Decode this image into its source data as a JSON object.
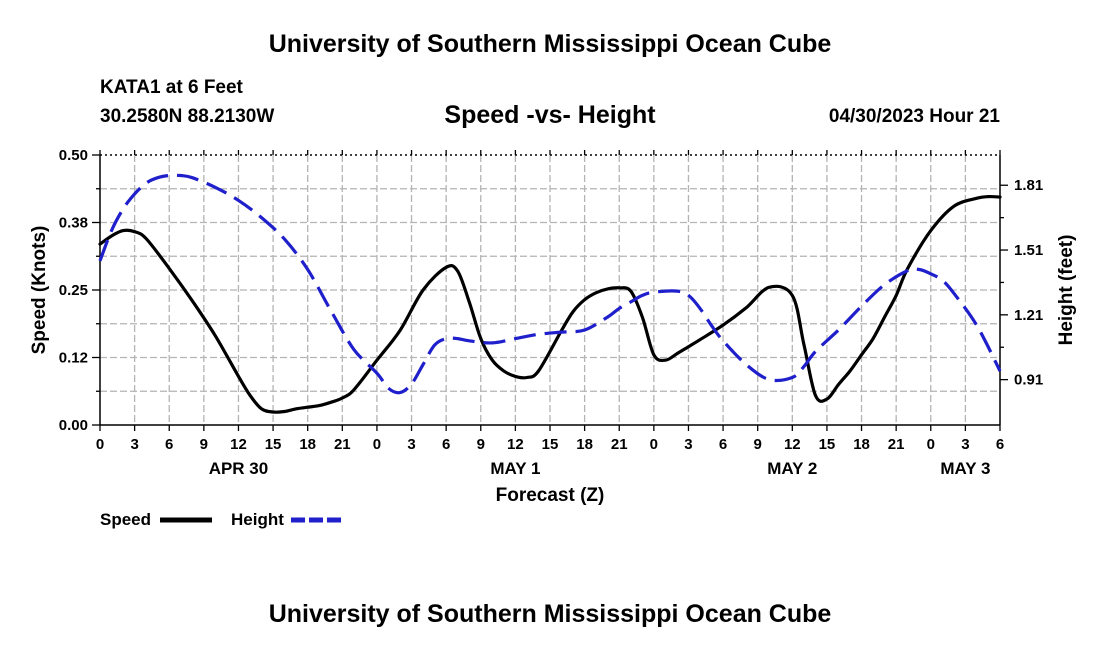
{
  "header": {
    "title_top": "University of Southern Mississippi Ocean Cube",
    "station": "KATA1 at 6 Feet",
    "coordinates": "30.2580N  88.2130W",
    "subtitle": "Speed -vs- Height",
    "datetime": "04/30/2023 Hour 21",
    "title_bottom": "University of Southern Mississippi Ocean Cube"
  },
  "colors": {
    "speed": "#000000",
    "height": "#1f1fcc",
    "grid": "#b4b4b4"
  },
  "chart_data": {
    "type": "line",
    "title": "Speed -vs- Height",
    "xlabel": "Forecast (Z)",
    "ylabel_left": "Speed (Knots)",
    "ylabel_right": "Height (feet)",
    "x_range_hours": [
      0,
      78
    ],
    "x_tick_labels": [
      "0",
      "3",
      "6",
      "9",
      "12",
      "15",
      "18",
      "21",
      "0",
      "3",
      "6",
      "9",
      "12",
      "15",
      "18",
      "21",
      "0",
      "3",
      "6",
      "9",
      "12",
      "15",
      "18",
      "21",
      "0",
      "3",
      "6"
    ],
    "date_labels": [
      {
        "label": "APR 30",
        "hour": 12
      },
      {
        "label": "MAY 1",
        "hour": 36
      },
      {
        "label": "MAY 2",
        "hour": 60
      },
      {
        "label": "MAY 3",
        "hour": 75
      }
    ],
    "left_axis": {
      "ylim": [
        0,
        0.5
      ],
      "ticks": [
        0.0,
        0.125,
        0.25,
        0.375,
        0.5
      ],
      "tick_labels": [
        "0.00",
        "0.12",
        "0.25",
        "0.38",
        "0.50"
      ]
    },
    "right_axis": {
      "ylim": [
        0.7,
        1.95
      ],
      "ticks": [
        0.91,
        1.21,
        1.51,
        1.81
      ],
      "tick_labels": [
        "0.91",
        "1.21",
        "1.51",
        "1.81"
      ]
    },
    "series": [
      {
        "name": "Speed",
        "axis": "left",
        "style": "solid",
        "x": [
          0,
          1,
          2,
          3,
          4,
          6,
          8,
          10,
          12,
          13,
          14,
          15,
          16,
          17,
          18,
          19,
          20,
          21,
          22,
          24,
          26,
          28,
          30,
          31,
          32,
          33,
          34,
          35,
          36,
          37,
          38,
          40,
          41,
          42,
          43,
          44,
          45,
          46,
          47,
          48,
          49,
          50,
          51,
          52,
          54,
          56,
          58,
          60,
          61,
          62,
          63,
          64,
          65,
          66,
          67,
          68,
          69,
          70,
          72,
          74,
          76,
          77,
          78
        ],
        "values": [
          0.335,
          0.35,
          0.36,
          0.358,
          0.345,
          0.29,
          0.23,
          0.165,
          0.09,
          0.055,
          0.03,
          0.024,
          0.025,
          0.03,
          0.033,
          0.036,
          0.042,
          0.05,
          0.065,
          0.12,
          0.175,
          0.25,
          0.292,
          0.285,
          0.228,
          0.16,
          0.12,
          0.1,
          0.09,
          0.088,
          0.1,
          0.175,
          0.21,
          0.232,
          0.245,
          0.252,
          0.254,
          0.248,
          0.2,
          0.13,
          0.12,
          0.132,
          0.145,
          0.158,
          0.185,
          0.217,
          0.255,
          0.24,
          0.15,
          0.055,
          0.048,
          0.075,
          0.1,
          0.13,
          0.16,
          0.2,
          0.24,
          0.29,
          0.36,
          0.405,
          0.42,
          0.423,
          0.422
        ]
      },
      {
        "name": "Height",
        "axis": "right",
        "style": "dashed",
        "x": [
          0,
          1,
          2,
          3,
          4,
          5,
          6,
          7,
          8,
          10,
          12,
          14,
          16,
          18,
          20,
          22,
          24,
          25,
          26,
          27,
          28,
          29,
          30,
          31,
          32,
          34,
          36,
          38,
          40,
          42,
          44,
          45,
          46,
          47,
          48,
          50,
          51,
          52,
          53,
          54,
          56,
          58,
          60,
          61,
          62,
          64,
          66,
          68,
          70,
          71,
          72,
          73,
          74,
          76,
          78
        ],
        "values": [
          1.46,
          1.6,
          1.7,
          1.77,
          1.82,
          1.845,
          1.855,
          1.855,
          1.845,
          1.8,
          1.74,
          1.66,
          1.56,
          1.42,
          1.23,
          1.05,
          0.94,
          0.87,
          0.85,
          0.89,
          0.98,
          1.07,
          1.1,
          1.1,
          1.09,
          1.08,
          1.1,
          1.12,
          1.13,
          1.14,
          1.2,
          1.24,
          1.27,
          1.3,
          1.315,
          1.32,
          1.3,
          1.24,
          1.16,
          1.09,
          0.98,
          0.91,
          0.92,
          0.97,
          1.04,
          1.14,
          1.25,
          1.35,
          1.415,
          1.42,
          1.4,
          1.37,
          1.31,
          1.16,
          0.95
        ]
      }
    ],
    "legend": [
      {
        "label": "Speed",
        "style": "solid"
      },
      {
        "label": "Height",
        "style": "dashed"
      }
    ]
  }
}
